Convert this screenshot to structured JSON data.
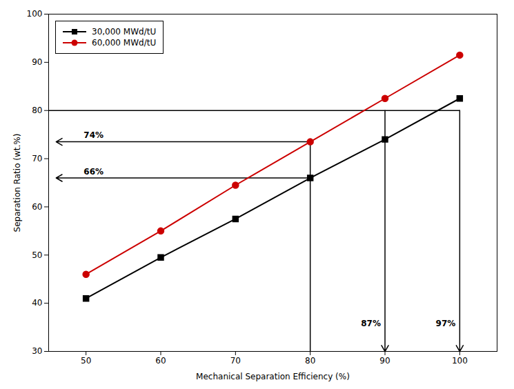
{
  "chart_data": {
    "type": "line",
    "xlabel": "Mechanical Separation Efficiency (%)",
    "ylabel": "Separation Ratio (wt.%)",
    "xlim": [
      45,
      105
    ],
    "ylim": [
      30,
      100
    ],
    "xticks": [
      50,
      60,
      70,
      80,
      90,
      100
    ],
    "yticks": [
      30,
      40,
      50,
      60,
      70,
      80,
      90,
      100
    ],
    "legend": "upper left",
    "x": [
      50,
      60,
      70,
      80,
      90,
      100
    ],
    "series": [
      {
        "name": "30,000 MWd/tU",
        "color": "#000000",
        "marker": "square",
        "values": [
          41.0,
          49.5,
          57.5,
          66.0,
          74.0,
          82.5
        ]
      },
      {
        "name": "60,000 MWd/tU",
        "color": "#cc0000",
        "marker": "circle",
        "values": [
          46.0,
          55.0,
          64.5,
          73.5,
          82.5,
          91.5
        ]
      }
    ],
    "annotations": [
      {
        "type": "line",
        "x": [
          45,
          100
        ],
        "y": [
          80,
          80
        ]
      },
      {
        "type": "line",
        "x": [
          80,
          80
        ],
        "y": [
          30,
          73.5
        ]
      },
      {
        "type": "arrow",
        "x": [
          80,
          46
        ],
        "y": [
          73.5,
          73.5
        ],
        "text": "74%"
      },
      {
        "type": "arrow",
        "x": [
          80,
          46
        ],
        "y": [
          66.0,
          66.0
        ],
        "text": "66%"
      },
      {
        "type": "arrow",
        "x": [
          90,
          90
        ],
        "y": [
          80,
          30
        ],
        "text": "87%"
      },
      {
        "type": "arrow",
        "x": [
          100,
          100
        ],
        "y": [
          80,
          30
        ],
        "text": "97%"
      }
    ]
  }
}
